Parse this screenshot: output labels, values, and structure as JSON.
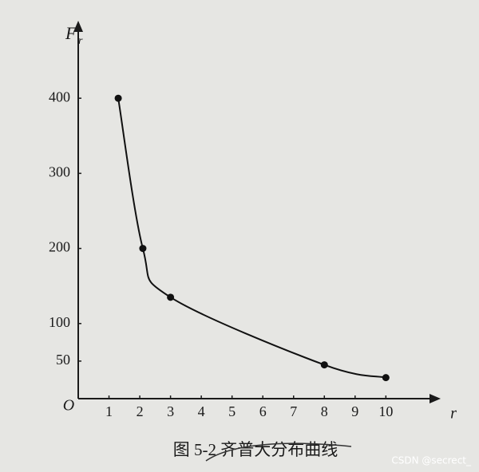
{
  "chart_data": {
    "type": "line",
    "y_label": "F",
    "y_label_subscript": "r",
    "x_label": "r",
    "origin_label": "O",
    "x": [
      1.3,
      2.1,
      3,
      8,
      10
    ],
    "values": [
      400,
      200,
      135,
      45,
      28
    ],
    "color": "#111111",
    "xlim": [
      0,
      11.6
    ],
    "xticks": [
      1,
      2,
      3,
      4,
      5,
      6,
      7,
      8,
      9,
      10
    ],
    "ylim": [
      0,
      500
    ],
    "yticks": [
      50,
      100,
      200,
      300,
      400
    ],
    "grid": false,
    "caption": "图 5-2  齐普大分布曲线",
    "watermark": "CSDN @secrect_"
  }
}
